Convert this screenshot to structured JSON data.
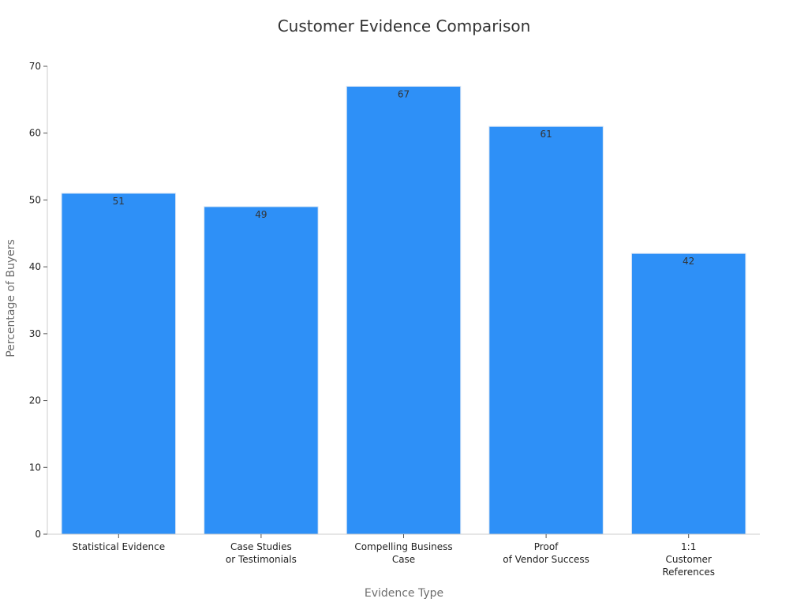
{
  "colors": {
    "bar": "#2e90f7",
    "axis": "#cccccc",
    "tick": "#555555"
  },
  "chart_data": {
    "type": "bar",
    "title": "Customer Evidence Comparison",
    "xlabel": "Evidence Type",
    "ylabel": "Percentage of Buyers",
    "categories": [
      [
        "Statistical Evidence"
      ],
      [
        "Case Studies",
        "or Testimonials"
      ],
      [
        "Compelling Business",
        "Case"
      ],
      [
        "Proof",
        "of Vendor Success"
      ],
      [
        "1:1",
        "Customer",
        "References"
      ]
    ],
    "values": [
      51,
      49,
      67,
      61,
      42
    ],
    "ylim": [
      0,
      70
    ],
    "yticks": [
      0,
      10,
      20,
      30,
      40,
      50,
      60,
      70
    ],
    "grid": false,
    "legend": "none"
  }
}
